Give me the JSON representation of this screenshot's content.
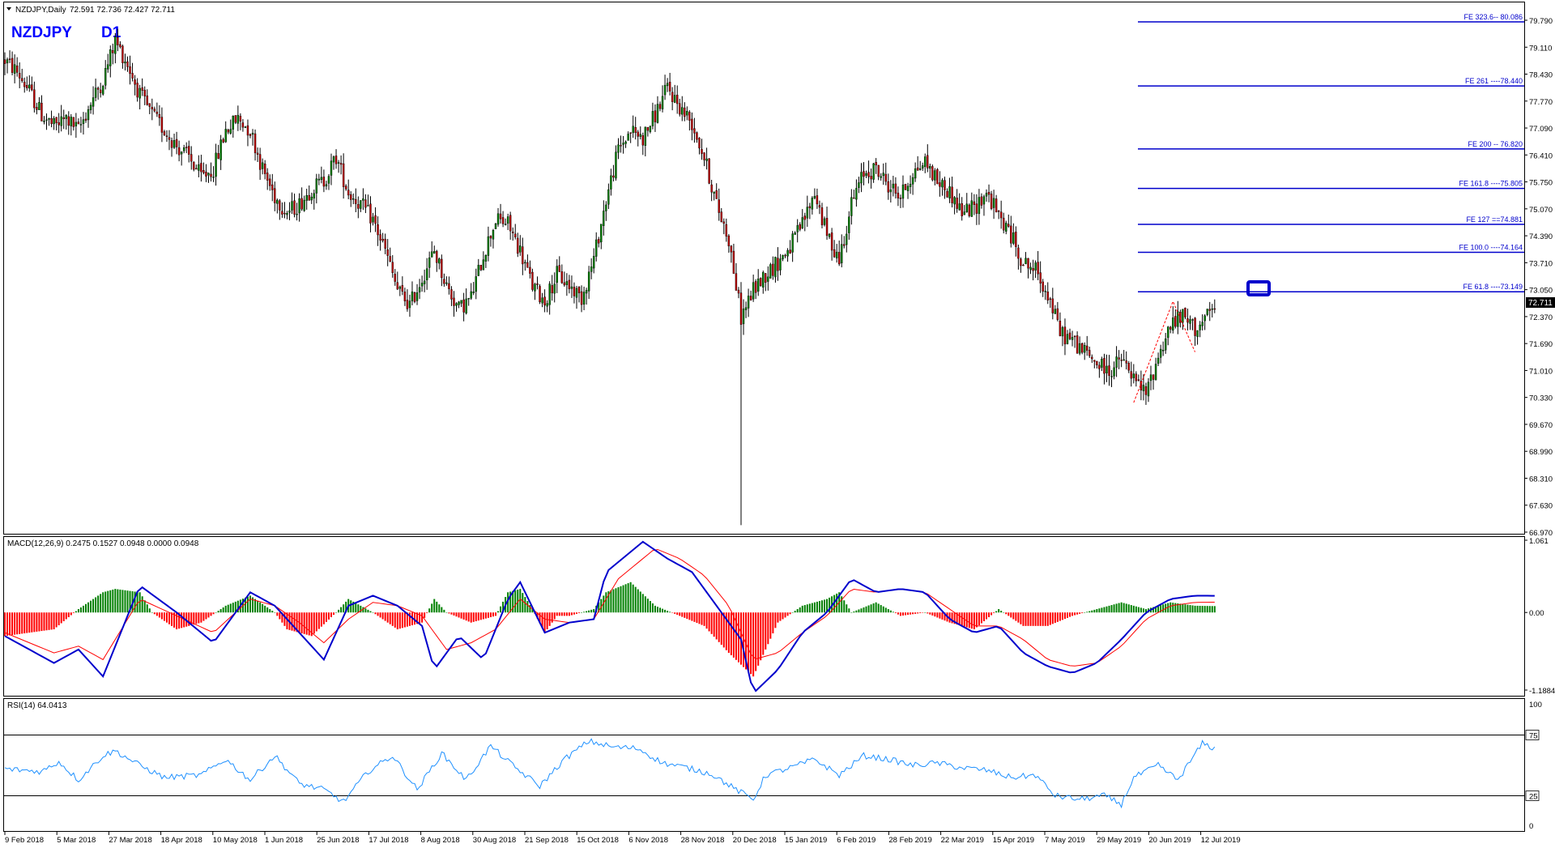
{
  "header": {
    "symbol_info": "NZDJPY,Daily",
    "ohlc": "72.591 72.736 72.427 72.711",
    "label_symbol": "NZDJPY",
    "label_tf": "D1"
  },
  "colors": {
    "bull": "#008000",
    "bear": "#c00000",
    "macd_line": "#0000cc",
    "signal_line": "#ff0000",
    "hist_pos": "#008000",
    "hist_neg": "#ff0000",
    "fib_line": "#0000cc",
    "rsi_line": "#1e90ff",
    "title_blue": "#0000ff"
  },
  "chart_data": [
    {
      "type": "candlestick",
      "name": "NZDJPY Daily",
      "ylim": [
        66.97,
        80.44
      ],
      "yticks": [
        "79.790",
        "79.110",
        "78.430",
        "77.770",
        "77.090",
        "76.410",
        "75.750",
        "75.070",
        "74.390",
        "73.710",
        "73.050",
        "72.370",
        "71.690",
        "71.010",
        "70.330",
        "69.670",
        "68.990",
        "68.310",
        "67.630",
        "66.970"
      ],
      "last_price": "72.711",
      "path_anchors": [
        [
          0,
          79.1
        ],
        [
          5,
          78.8
        ],
        [
          10,
          78.3
        ],
        [
          15,
          77.7
        ],
        [
          20,
          77.4
        ],
        [
          25,
          77.6
        ],
        [
          30,
          77.3
        ],
        [
          35,
          78.0
        ],
        [
          40,
          78.6
        ],
        [
          45,
          79.6
        ],
        [
          50,
          79.0
        ],
        [
          55,
          78.2
        ],
        [
          60,
          77.7
        ],
        [
          65,
          77.3
        ],
        [
          70,
          76.9
        ],
        [
          75,
          76.6
        ],
        [
          80,
          76.1
        ],
        [
          85,
          76.3
        ],
        [
          90,
          77.3
        ],
        [
          95,
          77.6
        ],
        [
          100,
          77.3
        ],
        [
          105,
          76.3
        ],
        [
          110,
          75.6
        ],
        [
          115,
          75.2
        ],
        [
          120,
          75.4
        ],
        [
          125,
          75.8
        ],
        [
          130,
          76.0
        ],
        [
          135,
          76.6
        ],
        [
          140,
          75.7
        ],
        [
          145,
          75.4
        ],
        [
          150,
          75.0
        ],
        [
          155,
          74.2
        ],
        [
          160,
          73.2
        ],
        [
          165,
          72.8
        ],
        [
          170,
          73.5
        ],
        [
          175,
          74.2
        ],
        [
          180,
          73.3
        ],
        [
          185,
          72.7
        ],
        [
          190,
          73.0
        ],
        [
          195,
          74.1
        ],
        [
          200,
          75.0
        ],
        [
          205,
          74.9
        ],
        [
          210,
          74.2
        ],
        [
          215,
          73.3
        ],
        [
          220,
          72.9
        ],
        [
          225,
          73.6
        ],
        [
          230,
          73.3
        ],
        [
          235,
          73.0
        ],
        [
          240,
          74.0
        ],
        [
          245,
          75.5
        ],
        [
          250,
          76.8
        ],
        [
          255,
          77.3
        ],
        [
          260,
          77.1
        ],
        [
          265,
          77.7
        ],
        [
          270,
          78.4
        ],
        [
          275,
          77.9
        ],
        [
          280,
          77.5
        ],
        [
          285,
          76.6
        ],
        [
          290,
          75.4
        ],
        [
          295,
          74.5
        ],
        [
          300,
          72.5
        ],
        [
          305,
          73.2
        ],
        [
          310,
          73.6
        ],
        [
          315,
          73.9
        ],
        [
          320,
          74.3
        ],
        [
          325,
          74.9
        ],
        [
          330,
          75.7
        ],
        [
          335,
          74.6
        ],
        [
          340,
          74.0
        ],
        [
          345,
          75.4
        ],
        [
          350,
          76.2
        ],
        [
          355,
          76.3
        ],
        [
          360,
          75.9
        ],
        [
          365,
          75.6
        ],
        [
          370,
          76.2
        ],
        [
          375,
          76.5
        ],
        [
          380,
          76.0
        ],
        [
          385,
          75.7
        ],
        [
          390,
          75.2
        ],
        [
          395,
          75.3
        ],
        [
          400,
          75.7
        ],
        [
          405,
          75.1
        ],
        [
          410,
          74.6
        ],
        [
          415,
          73.9
        ],
        [
          420,
          73.7
        ],
        [
          425,
          73.1
        ],
        [
          430,
          72.1
        ],
        [
          435,
          71.9
        ],
        [
          440,
          71.6
        ],
        [
          445,
          71.3
        ],
        [
          450,
          71.1
        ],
        [
          455,
          71.4
        ],
        [
          460,
          70.9
        ],
        [
          465,
          70.5
        ],
        [
          470,
          71.5
        ],
        [
          475,
          72.3
        ],
        [
          480,
          72.5
        ],
        [
          485,
          72.2
        ],
        [
          490,
          72.5
        ],
        [
          493,
          72.71
        ]
      ],
      "wick_events": [
        {
          "index": 300,
          "low": 67.15
        }
      ]
    },
    {
      "type": "line",
      "name": "MACD(12,26,9) 0.2475 0.1527 0.0948 0.0000 0.0948",
      "ylim": [
        -1.1884,
        1.061
      ],
      "yticks": [
        "1.061",
        "0.00",
        "-1.1884"
      ],
      "macd_anchors": [
        [
          0,
          -0.35
        ],
        [
          20,
          -0.75
        ],
        [
          30,
          -0.55
        ],
        [
          40,
          -0.95
        ],
        [
          55,
          0.4
        ],
        [
          70,
          0.0
        ],
        [
          85,
          -0.45
        ],
        [
          100,
          0.3
        ],
        [
          110,
          0.1
        ],
        [
          120,
          -0.3
        ],
        [
          130,
          -0.7
        ],
        [
          140,
          0.1
        ],
        [
          150,
          0.25
        ],
        [
          160,
          0.1
        ],
        [
          170,
          -0.2
        ],
        [
          175,
          -0.85
        ],
        [
          185,
          -0.35
        ],
        [
          195,
          -0.7
        ],
        [
          205,
          0.2
        ],
        [
          210,
          0.45
        ],
        [
          220,
          -0.3
        ],
        [
          230,
          -0.15
        ],
        [
          240,
          -0.1
        ],
        [
          245,
          0.6
        ],
        [
          260,
          1.05
        ],
        [
          270,
          0.8
        ],
        [
          280,
          0.6
        ],
        [
          290,
          0.1
        ],
        [
          300,
          -0.4
        ],
        [
          305,
          -1.2
        ],
        [
          315,
          -0.85
        ],
        [
          325,
          -0.3
        ],
        [
          335,
          0.0
        ],
        [
          345,
          0.5
        ],
        [
          355,
          0.3
        ],
        [
          365,
          0.35
        ],
        [
          375,
          0.3
        ],
        [
          385,
          -0.1
        ],
        [
          395,
          -0.3
        ],
        [
          405,
          -0.2
        ],
        [
          415,
          -0.6
        ],
        [
          425,
          -0.8
        ],
        [
          435,
          -0.9
        ],
        [
          445,
          -0.75
        ],
        [
          455,
          -0.4
        ],
        [
          465,
          0.0
        ],
        [
          475,
          0.2
        ],
        [
          485,
          0.25
        ],
        [
          493,
          0.2475
        ]
      ],
      "signal_anchors": [
        [
          0,
          -0.3
        ],
        [
          20,
          -0.6
        ],
        [
          30,
          -0.5
        ],
        [
          40,
          -0.7
        ],
        [
          55,
          0.2
        ],
        [
          70,
          -0.05
        ],
        [
          85,
          -0.3
        ],
        [
          100,
          0.2
        ],
        [
          110,
          0.1
        ],
        [
          120,
          -0.15
        ],
        [
          130,
          -0.45
        ],
        [
          140,
          -0.1
        ],
        [
          150,
          0.15
        ],
        [
          160,
          0.1
        ],
        [
          170,
          -0.05
        ],
        [
          180,
          -0.55
        ],
        [
          190,
          -0.45
        ],
        [
          200,
          -0.25
        ],
        [
          210,
          0.2
        ],
        [
          220,
          -0.1
        ],
        [
          230,
          -0.15
        ],
        [
          240,
          -0.1
        ],
        [
          250,
          0.5
        ],
        [
          265,
          0.95
        ],
        [
          275,
          0.8
        ],
        [
          285,
          0.55
        ],
        [
          295,
          0.1
        ],
        [
          305,
          -0.7
        ],
        [
          315,
          -0.6
        ],
        [
          325,
          -0.3
        ],
        [
          335,
          -0.05
        ],
        [
          345,
          0.35
        ],
        [
          355,
          0.3
        ],
        [
          365,
          0.35
        ],
        [
          375,
          0.3
        ],
        [
          385,
          0.05
        ],
        [
          395,
          -0.2
        ],
        [
          405,
          -0.2
        ],
        [
          415,
          -0.4
        ],
        [
          425,
          -0.7
        ],
        [
          435,
          -0.8
        ],
        [
          445,
          -0.75
        ],
        [
          455,
          -0.5
        ],
        [
          465,
          -0.1
        ],
        [
          475,
          0.1
        ],
        [
          485,
          0.15
        ],
        [
          493,
          0.1527
        ]
      ],
      "hist_anchors": [
        [
          0,
          -0.35
        ],
        [
          20,
          -0.25
        ],
        [
          30,
          0.05
        ],
        [
          40,
          0.3
        ],
        [
          45,
          0.35
        ],
        [
          55,
          0.3
        ],
        [
          60,
          0.0
        ],
        [
          70,
          -0.25
        ],
        [
          80,
          -0.15
        ],
        [
          90,
          0.1
        ],
        [
          100,
          0.25
        ],
        [
          110,
          0.0
        ],
        [
          115,
          -0.25
        ],
        [
          125,
          -0.35
        ],
        [
          135,
          0.0
        ],
        [
          140,
          0.2
        ],
        [
          150,
          0.0
        ],
        [
          160,
          -0.25
        ],
        [
          170,
          -0.15
        ],
        [
          175,
          0.2
        ],
        [
          180,
          0.0
        ],
        [
          190,
          -0.15
        ],
        [
          200,
          -0.05
        ],
        [
          205,
          0.3
        ],
        [
          210,
          0.35
        ],
        [
          215,
          0.05
        ],
        [
          220,
          -0.3
        ],
        [
          225,
          -0.05
        ],
        [
          230,
          -0.05
        ],
        [
          240,
          0.05
        ],
        [
          245,
          0.3
        ],
        [
          255,
          0.45
        ],
        [
          265,
          0.1
        ],
        [
          275,
          -0.05
        ],
        [
          285,
          -0.2
        ],
        [
          295,
          -0.6
        ],
        [
          305,
          -0.95
        ],
        [
          315,
          -0.15
        ],
        [
          325,
          0.1
        ],
        [
          335,
          0.2
        ],
        [
          340,
          0.3
        ],
        [
          345,
          0.0
        ],
        [
          355,
          0.15
        ],
        [
          365,
          -0.05
        ],
        [
          375,
          0.0
        ],
        [
          385,
          -0.15
        ],
        [
          395,
          -0.25
        ],
        [
          405,
          0.05
        ],
        [
          415,
          -0.2
        ],
        [
          425,
          -0.2
        ],
        [
          435,
          -0.05
        ],
        [
          445,
          0.05
        ],
        [
          455,
          0.15
        ],
        [
          465,
          0.05
        ],
        [
          475,
          0.15
        ],
        [
          485,
          0.1
        ],
        [
          493,
          0.0948
        ]
      ]
    },
    {
      "type": "line",
      "name": "RSI(14) 64.0413",
      "ylim": [
        0,
        100
      ],
      "yticks": [
        "100",
        "75",
        "25",
        "0"
      ],
      "levels": [
        75,
        25
      ],
      "rsi_anchors": [
        [
          0,
          47
        ],
        [
          15,
          45
        ],
        [
          22,
          53
        ],
        [
          30,
          38
        ],
        [
          40,
          58
        ],
        [
          45,
          62
        ],
        [
          55,
          50
        ],
        [
          65,
          40
        ],
        [
          80,
          42
        ],
        [
          90,
          55
        ],
        [
          100,
          38
        ],
        [
          110,
          58
        ],
        [
          120,
          35
        ],
        [
          130,
          30
        ],
        [
          138,
          20
        ],
        [
          148,
          45
        ],
        [
          158,
          58
        ],
        [
          168,
          30
        ],
        [
          178,
          60
        ],
        [
          188,
          38
        ],
        [
          198,
          66
        ],
        [
          208,
          48
        ],
        [
          218,
          33
        ],
        [
          228,
          55
        ],
        [
          238,
          70
        ],
        [
          248,
          65
        ],
        [
          258,
          64
        ],
        [
          268,
          52
        ],
        [
          278,
          48
        ],
        [
          288,
          43
        ],
        [
          298,
          30
        ],
        [
          305,
          22
        ],
        [
          310,
          42
        ],
        [
          320,
          48
        ],
        [
          330,
          55
        ],
        [
          340,
          42
        ],
        [
          350,
          58
        ],
        [
          360,
          55
        ],
        [
          370,
          50
        ],
        [
          380,
          52
        ],
        [
          390,
          48
        ],
        [
          400,
          46
        ],
        [
          410,
          40
        ],
        [
          420,
          42
        ],
        [
          428,
          25
        ],
        [
          438,
          22
        ],
        [
          448,
          25
        ],
        [
          455,
          18
        ],
        [
          460,
          40
        ],
        [
          470,
          50
        ],
        [
          478,
          38
        ],
        [
          488,
          68
        ],
        [
          493,
          64
        ]
      ]
    }
  ],
  "fib_levels": [
    {
      "label": "FE 323.6-- 80.086",
      "value": 80.086
    },
    {
      "label": "FE 261 ----78.440",
      "value": 78.44
    },
    {
      "label": "FE 200 -- 76.820",
      "value": 76.82
    },
    {
      "label": "FE 161.8 ----75.805",
      "value": 75.805
    },
    {
      "label": "FE 127 ==74.881",
      "value": 74.881
    },
    {
      "label": "FE 100.0 ----74.164",
      "value": 74.164
    },
    {
      "label": "FE 61.8 ----73.149",
      "value": 73.149
    }
  ],
  "x_axis": {
    "labels": [
      "9 Feb 2018",
      "5 Mar 2018",
      "27 Mar 2018",
      "18 Apr 2018",
      "10 May 2018",
      "1 Jun 2018",
      "25 Jun 2018",
      "17 Jul 2018",
      "8 Aug 2018",
      "30 Aug 2018",
      "21 Sep 2018",
      "15 Oct 2018",
      "6 Nov 2018",
      "28 Nov 2018",
      "20 Dec 2018",
      "15 Jan 2019",
      "6 Feb 2019",
      "28 Feb 2019",
      "22 Mar 2019",
      "15 Apr 2019",
      "7 May 2019",
      "29 May 2019",
      "20 Jun 2019",
      "12 Jul 2019"
    ]
  }
}
